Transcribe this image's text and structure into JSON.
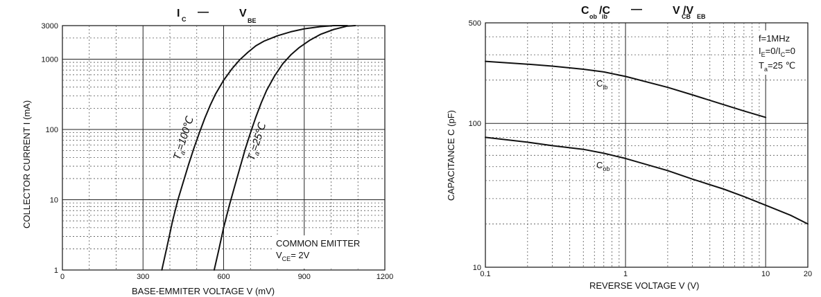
{
  "chart_data": [
    {
      "type": "line",
      "title": {
        "a": "I",
        "a_sub": "C",
        "dash": "—",
        "b": "V",
        "b_sub": "BE"
      },
      "xlabel": "BASE-EMMITER VOLTAGE V   (mV)",
      "ylabel": "COLLECTOR CURRENT   I  (mA)",
      "x_scale": "linear",
      "y_scale": "log",
      "xlim": [
        0,
        1200
      ],
      "ylim": [
        1,
        3000
      ],
      "x_ticks": [
        0,
        300,
        600,
        900,
        1200
      ],
      "x_tick_labels": [
        "0",
        "300",
        "600",
        "900",
        "1200"
      ],
      "y_ticks": [
        1,
        10,
        100,
        1000,
        3000
      ],
      "y_tick_labels": [
        "1",
        "10",
        "100",
        "1000",
        "3000"
      ],
      "grid": true,
      "series": [
        {
          "name": "Ta=100℃",
          "label_parts": [
            "T",
            "a",
            "=100℃"
          ],
          "x": [
            370,
            390,
            410,
            430,
            450,
            470,
            490,
            510,
            530,
            550,
            570,
            600,
            630,
            660,
            690,
            720,
            750,
            800,
            850,
            900,
            960,
            1010,
            1060
          ],
          "y": [
            1,
            2.2,
            5,
            10,
            18,
            32,
            55,
            90,
            145,
            220,
            320,
            500,
            720,
            980,
            1250,
            1550,
            1800,
            2150,
            2450,
            2700,
            2900,
            3000,
            3000
          ]
        },
        {
          "name": "Ta=25℃",
          "label_parts": [
            "T",
            "a",
            "=25℃"
          ],
          "x": [
            565,
            580,
            600,
            620,
            640,
            660,
            680,
            700,
            720,
            740,
            760,
            790,
            820,
            850,
            880,
            920,
            960,
            1010,
            1060,
            1090
          ],
          "y": [
            1,
            1.8,
            4,
            8,
            15,
            28,
            52,
            90,
            150,
            240,
            360,
            580,
            860,
            1150,
            1450,
            1850,
            2250,
            2650,
            2950,
            3000
          ]
        }
      ],
      "annotation": {
        "line1": "COMMON EMITTER",
        "line2_a": "V",
        "line2_sub": "CE",
        "line2_b": "= 2V"
      }
    },
    {
      "type": "line",
      "title": {
        "a": "C",
        "a_sub": "ob",
        "a_mid": "/C",
        "a_sub2": "ib",
        "dash": "—",
        "b": "V",
        "b_sub": "CB",
        "b_mid": "/V",
        "b_sub2": "EB"
      },
      "xlabel": "REVERSE   VOLTAGE    V    (V)",
      "ylabel": "CAPACITANCE C      (pF)",
      "x_scale": "log",
      "y_scale": "log",
      "xlim": [
        0.1,
        20
      ],
      "ylim": [
        10,
        500
      ],
      "x_ticks": [
        0.1,
        1,
        10,
        20
      ],
      "x_tick_labels": [
        "0.1",
        "1",
        "10",
        "20"
      ],
      "y_ticks": [
        10,
        100,
        500
      ],
      "y_tick_labels": [
        "10",
        "100",
        "500"
      ],
      "grid": true,
      "series": [
        {
          "name": "Cib",
          "label_parts": [
            "C",
            "ib"
          ],
          "x": [
            0.1,
            0.2,
            0.3,
            0.5,
            0.7,
            1,
            2,
            3,
            5,
            7,
            10
          ],
          "y": [
            270,
            258,
            250,
            238,
            228,
            212,
            178,
            158,
            135,
            122,
            110
          ]
        },
        {
          "name": "Cob",
          "label_parts": [
            "C",
            "ob"
          ],
          "x": [
            0.1,
            0.2,
            0.3,
            0.5,
            0.7,
            1,
            2,
            3,
            5,
            7,
            10,
            15,
            20
          ],
          "y": [
            80,
            74,
            70,
            66,
            62,
            57,
            47,
            41,
            35,
            31,
            27,
            23,
            20
          ]
        }
      ],
      "annotation": {
        "f": "f=1MHz",
        "ie_a": "I",
        "ie_sub": "E",
        "ie_b": "=0/I",
        "ic_sub": "C",
        "ie_c": "=0",
        "t_a": "T",
        "t_sub": "a",
        "t_b": "=25 ℃"
      }
    }
  ]
}
